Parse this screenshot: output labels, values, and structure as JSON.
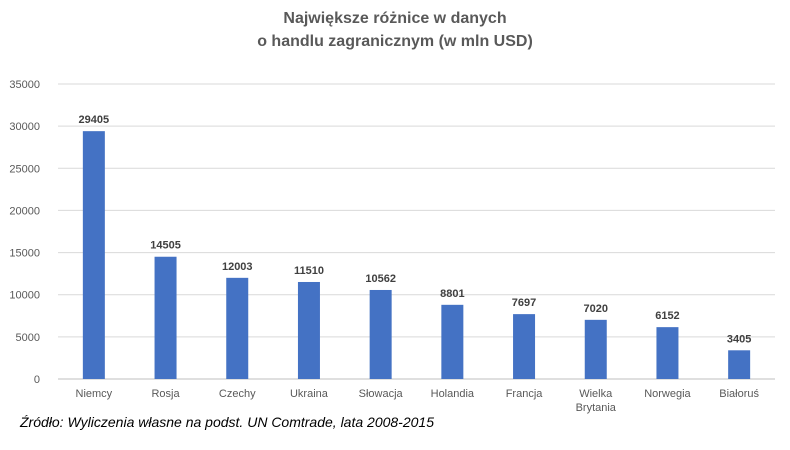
{
  "chart_data": {
    "type": "bar",
    "title": "Największe różnice w danych o handlu zagranicznym (w mln USD)",
    "title_lines": [
      "Największe różnice w danych",
      "o handlu zagranicznym (w mln USD)"
    ],
    "categories": [
      "Niemcy",
      "Rosja",
      "Czechy",
      "Ukraina",
      "Słowacja",
      "Holandia",
      "Francja",
      "Wielka Brytania",
      "Norwegia",
      "Białoruś"
    ],
    "category_lines": [
      [
        "Niemcy"
      ],
      [
        "Rosja"
      ],
      [
        "Czechy"
      ],
      [
        "Ukraina"
      ],
      [
        "Słowacja"
      ],
      [
        "Holandia"
      ],
      [
        "Francja"
      ],
      [
        "Wielka",
        "Brytania"
      ],
      [
        "Norwegia"
      ],
      [
        "Białoruś"
      ]
    ],
    "values": [
      29405,
      14505,
      12003,
      11510,
      10562,
      8801,
      7697,
      7020,
      6152,
      3405
    ],
    "ylim": [
      0,
      35000
    ],
    "yticks": [
      0,
      5000,
      10000,
      15000,
      20000,
      25000,
      30000,
      35000
    ],
    "xlabel": "",
    "ylabel": "",
    "grid": true,
    "data_labels": true,
    "bar_color": "#4472C4"
  },
  "source_note": "Źródło: Wyliczenia własne na podst. UN Comtrade, lata 2008-2015"
}
